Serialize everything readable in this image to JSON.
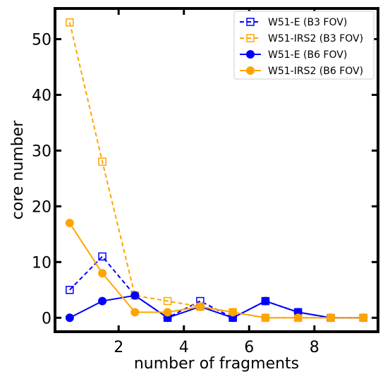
{
  "chart_data": {
    "type": "line",
    "xlabel": "number of fragments",
    "ylabel": "core number",
    "xlim": [
      0.05,
      9.95
    ],
    "ylim": [
      -2.5,
      55.5
    ],
    "x_ticks": [
      2,
      4,
      6,
      8
    ],
    "y_ticks": [
      0,
      10,
      20,
      30,
      40,
      50
    ],
    "grid": false,
    "legend_position": "top-right",
    "x": [
      0.5,
      1.5,
      2.5,
      3.5,
      4.5,
      5.5,
      6.5,
      7.5,
      8.5,
      9.5
    ],
    "series": [
      {
        "name": "W51-E (B3 FOV)",
        "color": "#0000ff",
        "line_style": "dashed",
        "marker": "open-square",
        "values": [
          5,
          11,
          4,
          0,
          3,
          0,
          3,
          1,
          0,
          0
        ]
      },
      {
        "name": "W51-IRS2 (B3 FOV)",
        "color": "#ffa500",
        "line_style": "dashed",
        "marker": "open-square",
        "values": [
          53,
          28,
          4,
          3,
          2,
          1,
          0,
          0,
          0,
          0
        ]
      },
      {
        "name": "W51-E (B6 FOV)",
        "color": "#0000ff",
        "line_style": "solid",
        "marker": "filled-circle",
        "values": [
          0,
          3,
          4,
          0,
          2,
          0,
          3,
          1,
          0,
          0
        ]
      },
      {
        "name": "W51-IRS2 (B6 FOV)",
        "color": "#ffa500",
        "line_style": "solid",
        "marker": "filled-circle",
        "values": [
          17,
          8,
          1,
          1,
          2,
          1,
          0,
          0,
          0,
          0
        ]
      }
    ]
  }
}
